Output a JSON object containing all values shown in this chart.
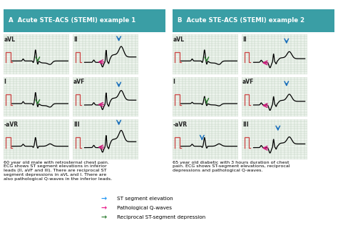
{
  "title_a": "A  Acute STE-ACS (STEMI) example 1",
  "title_b": "B  Acute STE-ACS (STEMI) example 2",
  "title_bg": "#3a9ea5",
  "title_fg": "white",
  "grid_bg": "#e8f0e8",
  "panel_bg": "white",
  "text1": "60 year old male with retrosternal chest pain.\nECG shows ST segment elevations in inferior\nleads (II, aVF and III). There are reciprocal ST\nsegment depressions in aVL and I. There are\nalso pathological Q-waves in the inferior leads.",
  "text2": "65 year old diabetic with 3 hours duration of chest\npain. ECG shows ST-segment elevations, reciprocal\ndepressions and pathological Q-waves.",
  "legend_items": [
    {
      "color": "#2196f3",
      "label": "ST segment elevation"
    },
    {
      "color": "#e91e8c",
      "label": "Pathological Q-waves"
    },
    {
      "color": "#2e7d32",
      "label": "Reciprocal ST-segment depression"
    }
  ],
  "arrow_blue": "#1a6fbb",
  "arrow_pink": "#cc1a7a",
  "arrow_green": "#2e7d32",
  "ref_color": "#d44",
  "lead_label_color": "#222"
}
